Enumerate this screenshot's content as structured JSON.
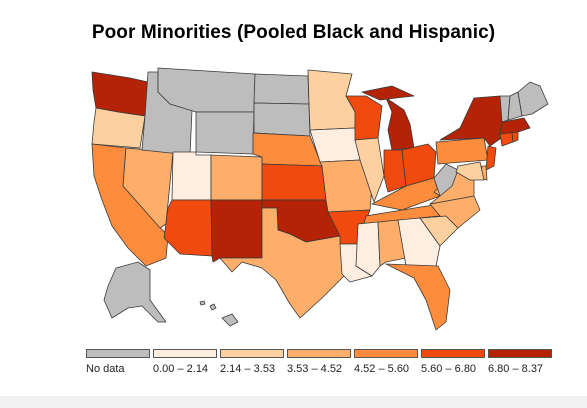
{
  "title": "Poor Minorities (Pooled Black and Hispanic)",
  "colors": {
    "no_data": "#bdbdbd",
    "bin1": "#fdeee0",
    "bin2": "#fdd0a0",
    "bin3": "#fdae6b",
    "bin4": "#fd8d3c",
    "bin5": "#f04a0e",
    "bin6": "#b42306"
  },
  "legend": [
    {
      "label": "No data",
      "color_key": "no_data"
    },
    {
      "label": "0.00 – 2.14",
      "color_key": "bin1"
    },
    {
      "label": "2.14 – 3.53",
      "color_key": "bin2"
    },
    {
      "label": "3.53 – 4.52",
      "color_key": "bin3"
    },
    {
      "label": "4.52 – 5.60",
      "color_key": "bin4"
    },
    {
      "label": "5.60 – 6.80",
      "color_key": "bin5"
    },
    {
      "label": "6.80 – 8.37",
      "color_key": "bin6"
    }
  ],
  "states": {
    "WA": "bin6",
    "OR": "bin2",
    "CA": "bin4",
    "NV": "bin3",
    "ID": "no_data",
    "MT": "no_data",
    "WY": "no_data",
    "UT": "bin1",
    "AZ": "bin5",
    "CO": "bin3",
    "NM": "bin6",
    "ND": "no_data",
    "SD": "no_data",
    "NE": "bin4",
    "KS": "bin5",
    "OK": "bin6",
    "TX": "bin3",
    "MN": "bin2",
    "IA": "bin1",
    "MO": "bin3",
    "AR": "bin5",
    "LA": "bin1",
    "WI": "bin5",
    "IL": "bin2",
    "MI": "bin6",
    "IN": "bin5",
    "OH": "bin5",
    "KY": "bin4",
    "TN": "bin4",
    "MS": "bin1",
    "AL": "bin3",
    "GA": "bin1",
    "FL": "bin4",
    "SC": "bin2",
    "NC": "bin3",
    "VA": "bin3",
    "WV": "no_data",
    "PA": "bin4",
    "NY": "bin6",
    "VT": "no_data",
    "NH": "no_data",
    "ME": "no_data",
    "MA": "bin6",
    "CT": "bin5",
    "RI": "bin5",
    "NJ": "bin5",
    "DE": "bin3",
    "MD": "bin2",
    "AK": "no_data",
    "HI": "no_data"
  }
}
